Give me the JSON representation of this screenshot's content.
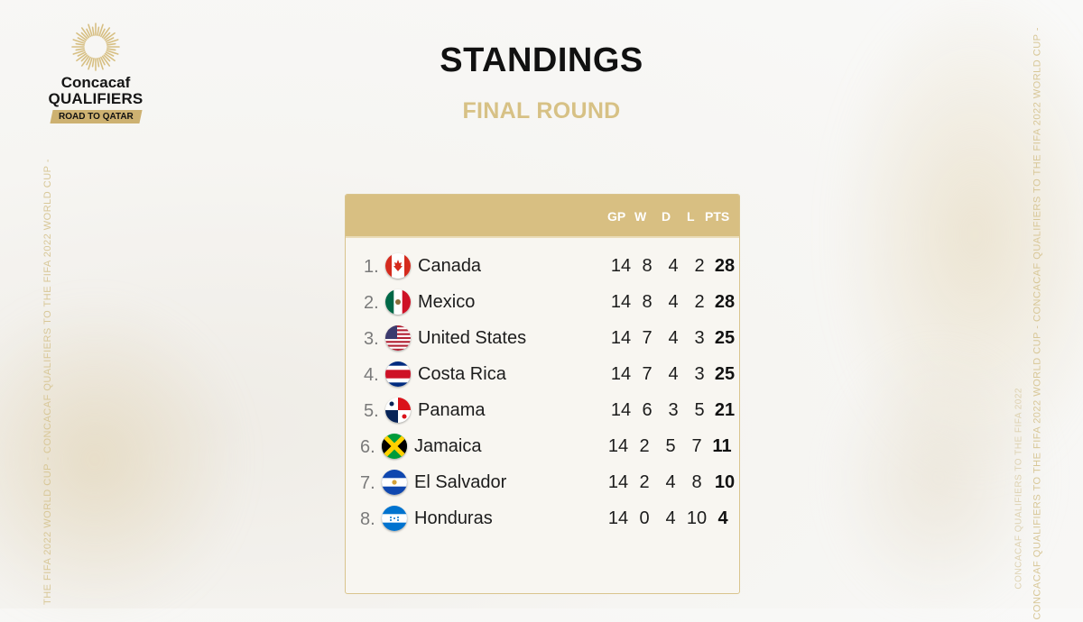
{
  "brand": {
    "line1": "Concacaf",
    "line2": "QUALIFIERS",
    "ribbon": "ROAD TO QATAR"
  },
  "side_text": {
    "left": "THE FIFA 2022 WORLD CUP - CONCACAF QUALIFIERS TO THE FIFA 2022 WORLD CUP -",
    "right": "CONCACAF QUALIFIERS TO THE FIFA 2022 WORLD CUP - CONCACAF QUALIFIERS TO THE FIFA 2022 WORLD CUP -",
    "right_small": "CONCACAF QUALIFIERS TO THE FIFA 2022"
  },
  "header": {
    "title": "STANDINGS",
    "subtitle": "FINAL ROUND"
  },
  "table": {
    "columns": [
      "GP",
      "W",
      "D",
      "L",
      "PTS"
    ],
    "rows": [
      {
        "rank": "1.",
        "team": "Canada",
        "flag": "canada-flag-icon",
        "gp": "14",
        "w": "8",
        "d": "4",
        "l": "2",
        "pts": "28"
      },
      {
        "rank": "2.",
        "team": "Mexico",
        "flag": "mexico-flag-icon",
        "gp": "14",
        "w": "8",
        "d": "4",
        "l": "2",
        "pts": "28"
      },
      {
        "rank": "3.",
        "team": "United States",
        "flag": "usa-flag-icon",
        "gp": "14",
        "w": "7",
        "d": "4",
        "l": "3",
        "pts": "25"
      },
      {
        "rank": "4.",
        "team": "Costa Rica",
        "flag": "costa-rica-flag-icon",
        "gp": "14",
        "w": "7",
        "d": "4",
        "l": "3",
        "pts": "25"
      },
      {
        "rank": "5.",
        "team": "Panama",
        "flag": "panama-flag-icon",
        "gp": "14",
        "w": "6",
        "d": "3",
        "l": "5",
        "pts": "21"
      },
      {
        "rank": "6.",
        "team": "Jamaica",
        "flag": "jamaica-flag-icon",
        "gp": "14",
        "w": "2",
        "d": "5",
        "l": "7",
        "pts": "11"
      },
      {
        "rank": "7.",
        "team": "El Salvador",
        "flag": "el-salvador-flag-icon",
        "gp": "14",
        "w": "2",
        "d": "4",
        "l": "8",
        "pts": "10"
      },
      {
        "rank": "8.",
        "team": "Honduras",
        "flag": "honduras-flag-icon",
        "gp": "14",
        "w": "0",
        "d": "4",
        "l": "10",
        "pts": "4"
      }
    ]
  },
  "colors": {
    "gold": "#d8bf82",
    "gold_text": "#d7c185",
    "dark": "#111111"
  }
}
